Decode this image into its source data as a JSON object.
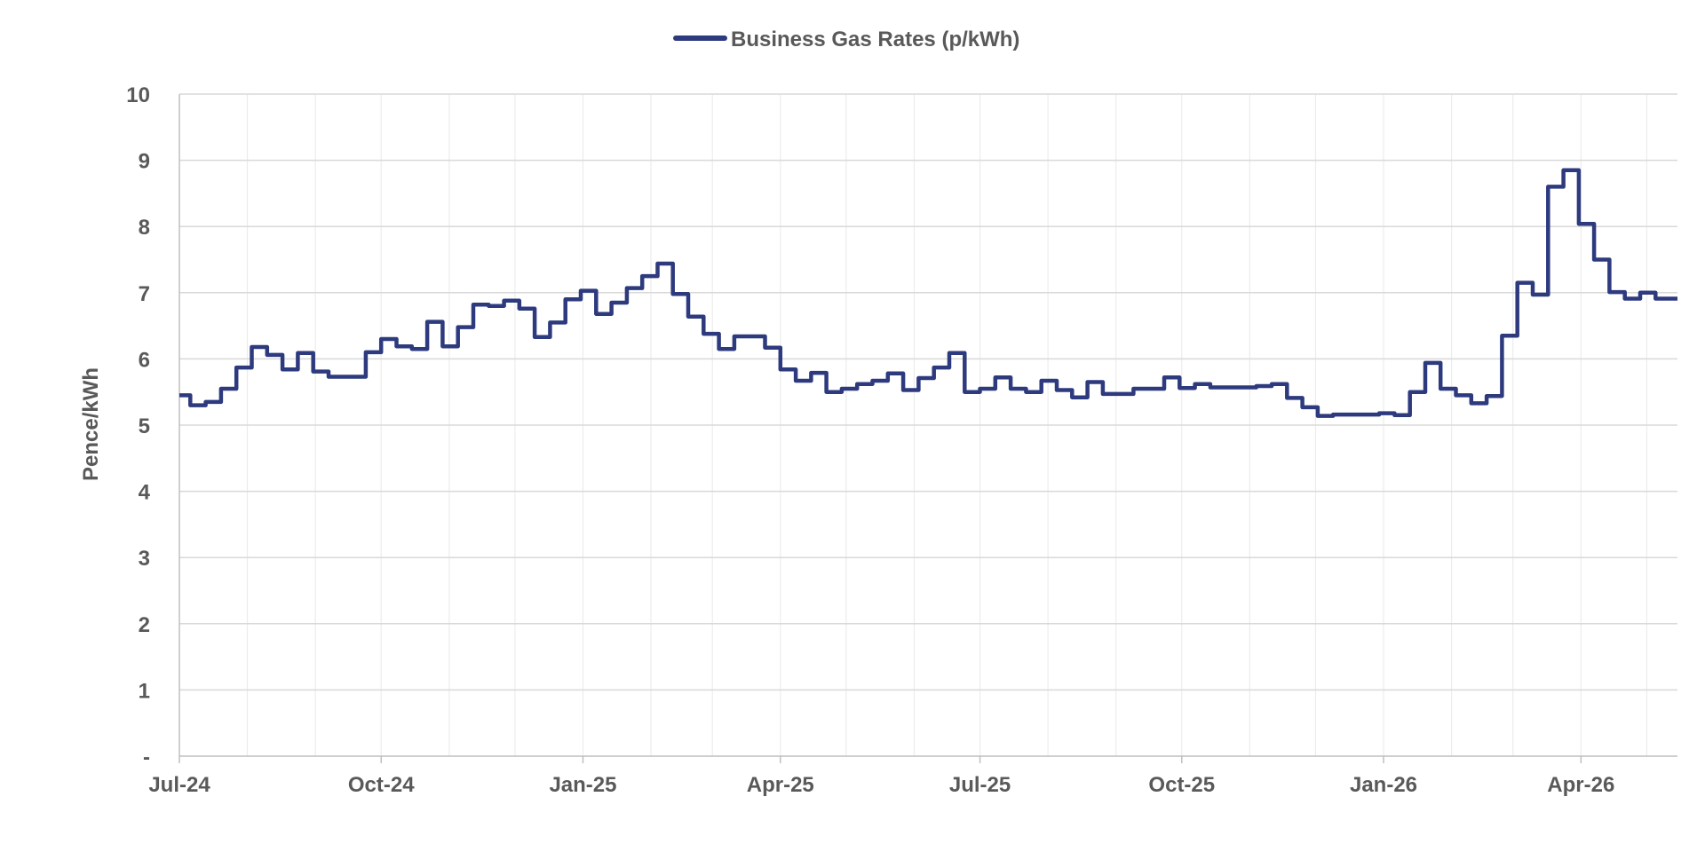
{
  "chart_data": {
    "type": "line",
    "title": "",
    "xlabel": "",
    "ylabel": "Pence/kWh",
    "ylim": [
      0,
      10
    ],
    "yticks": [
      "-",
      "1",
      "2",
      "3",
      "4",
      "5",
      "6",
      "7",
      "8",
      "9",
      "10"
    ],
    "x_range": [
      "2024-07-01",
      "2026-05-15"
    ],
    "xticks": [
      {
        "date": "2024-07-01",
        "label": "Jul-24"
      },
      {
        "date": "2024-10-01",
        "label": "Oct-24"
      },
      {
        "date": "2025-01-01",
        "label": "Jan-25"
      },
      {
        "date": "2025-04-01",
        "label": "Apr-25"
      },
      {
        "date": "2025-07-01",
        "label": "Jul-25"
      },
      {
        "date": "2025-10-01",
        "label": "Oct-25"
      },
      {
        "date": "2026-01-01",
        "label": "Jan-26"
      },
      {
        "date": "2026-04-01",
        "label": "Apr-26"
      }
    ],
    "grid": true,
    "legend_position": "top-center",
    "series": [
      {
        "name": "Business Gas Rates (p/kWh)",
        "color": "#2e3a7e",
        "step": true,
        "points": [
          [
            "2024-07-01",
            5.45
          ],
          [
            "2024-07-06",
            5.3
          ],
          [
            "2024-07-13",
            5.35
          ],
          [
            "2024-07-20",
            5.55
          ],
          [
            "2024-07-27",
            5.87
          ],
          [
            "2024-08-03",
            6.18
          ],
          [
            "2024-08-10",
            6.06
          ],
          [
            "2024-08-17",
            5.84
          ],
          [
            "2024-08-24",
            6.09
          ],
          [
            "2024-08-31",
            5.81
          ],
          [
            "2024-09-07",
            5.73
          ],
          [
            "2024-09-24",
            6.1
          ],
          [
            "2024-10-01",
            6.3
          ],
          [
            "2024-10-08",
            6.19
          ],
          [
            "2024-10-15",
            6.15
          ],
          [
            "2024-10-22",
            6.56
          ],
          [
            "2024-10-29",
            6.19
          ],
          [
            "2024-11-05",
            6.48
          ],
          [
            "2024-11-12",
            6.82
          ],
          [
            "2024-11-19",
            6.8
          ],
          [
            "2024-11-26",
            6.88
          ],
          [
            "2024-12-03",
            6.76
          ],
          [
            "2024-12-10",
            6.33
          ],
          [
            "2024-12-17",
            6.55
          ],
          [
            "2024-12-24",
            6.9
          ],
          [
            "2024-12-31",
            7.03
          ],
          [
            "2025-01-07",
            6.68
          ],
          [
            "2025-01-14",
            6.85
          ],
          [
            "2025-01-21",
            7.07
          ],
          [
            "2025-01-28",
            7.25
          ],
          [
            "2025-02-04",
            7.44
          ],
          [
            "2025-02-11",
            6.98
          ],
          [
            "2025-02-18",
            6.64
          ],
          [
            "2025-02-25",
            6.38
          ],
          [
            "2025-03-04",
            6.15
          ],
          [
            "2025-03-11",
            6.34
          ],
          [
            "2025-03-25",
            6.17
          ],
          [
            "2025-04-01",
            5.84
          ],
          [
            "2025-04-08",
            5.67
          ],
          [
            "2025-04-15",
            5.79
          ],
          [
            "2025-04-22",
            5.5
          ],
          [
            "2025-04-29",
            5.55
          ],
          [
            "2025-05-06",
            5.62
          ],
          [
            "2025-05-13",
            5.67
          ],
          [
            "2025-05-20",
            5.78
          ],
          [
            "2025-05-27",
            5.53
          ],
          [
            "2025-06-03",
            5.71
          ],
          [
            "2025-06-10",
            5.87
          ],
          [
            "2025-06-17",
            6.09
          ],
          [
            "2025-06-24",
            5.5
          ],
          [
            "2025-07-01",
            5.55
          ],
          [
            "2025-07-08",
            5.72
          ],
          [
            "2025-07-15",
            5.55
          ],
          [
            "2025-07-22",
            5.5
          ],
          [
            "2025-07-29",
            5.67
          ],
          [
            "2025-08-05",
            5.53
          ],
          [
            "2025-08-12",
            5.42
          ],
          [
            "2025-08-19",
            5.65
          ],
          [
            "2025-08-26",
            5.47
          ],
          [
            "2025-09-09",
            5.55
          ],
          [
            "2025-09-23",
            5.72
          ],
          [
            "2025-09-30",
            5.56
          ],
          [
            "2025-10-07",
            5.62
          ],
          [
            "2025-10-14",
            5.57
          ],
          [
            "2025-10-28",
            5.57
          ],
          [
            "2025-11-04",
            5.59
          ],
          [
            "2025-11-11",
            5.62
          ],
          [
            "2025-11-18",
            5.41
          ],
          [
            "2025-11-25",
            5.27
          ],
          [
            "2025-12-02",
            5.14
          ],
          [
            "2025-12-09",
            5.16
          ],
          [
            "2025-12-16",
            5.16
          ],
          [
            "2025-12-30",
            5.18
          ],
          [
            "2026-01-06",
            5.15
          ],
          [
            "2026-01-13",
            5.5
          ],
          [
            "2026-01-20",
            5.94
          ],
          [
            "2026-01-27",
            5.55
          ],
          [
            "2026-02-03",
            5.45
          ],
          [
            "2026-02-10",
            5.33
          ],
          [
            "2026-02-17",
            5.44
          ],
          [
            "2026-02-24",
            6.35
          ],
          [
            "2026-03-03",
            7.15
          ],
          [
            "2026-03-10",
            6.97
          ],
          [
            "2026-03-17",
            8.6
          ],
          [
            "2026-03-24",
            8.85
          ],
          [
            "2026-03-31",
            8.04
          ],
          [
            "2026-04-07",
            7.5
          ],
          [
            "2026-04-14",
            7.01
          ],
          [
            "2026-04-21",
            6.91
          ],
          [
            "2026-04-28",
            7.0
          ],
          [
            "2026-05-05",
            6.91
          ],
          [
            "2026-05-15",
            6.91
          ]
        ]
      }
    ]
  }
}
